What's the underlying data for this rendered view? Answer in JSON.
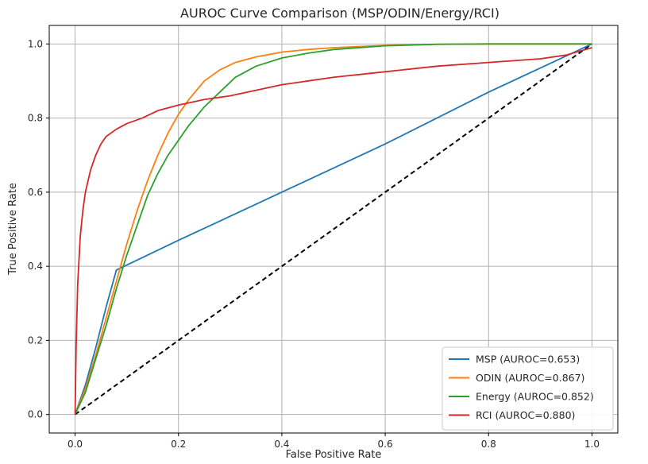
{
  "chart_data": {
    "type": "line",
    "title": "AUROC Curve Comparison (MSP/ODIN/Energy/RCI)",
    "xlabel": "False Positive Rate",
    "ylabel": "True Positive Rate",
    "xlim": [
      -0.05,
      1.05
    ],
    "ylim": [
      -0.05,
      1.05
    ],
    "xticks": [
      0.0,
      0.2,
      0.4,
      0.6,
      0.8,
      1.0
    ],
    "yticks": [
      0.0,
      0.2,
      0.4,
      0.6,
      0.8,
      1.0
    ],
    "xtick_labels": [
      "0.0",
      "0.2",
      "0.4",
      "0.6",
      "0.8",
      "1.0"
    ],
    "ytick_labels": [
      "0.0",
      "0.2",
      "0.4",
      "0.6",
      "0.8",
      "1.0"
    ],
    "grid": true,
    "legend_position": "lower-right",
    "series": [
      {
        "name": "MSP (AUROC=0.653)",
        "color": "#1f77b4",
        "x": [
          0.0,
          0.02,
          0.04,
          0.06,
          0.08,
          0.095,
          0.2,
          0.4,
          0.6,
          0.8,
          1.0
        ],
        "y": [
          0.0,
          0.08,
          0.18,
          0.29,
          0.39,
          0.4,
          0.47,
          0.6,
          0.73,
          0.87,
          1.0
        ]
      },
      {
        "name": "ODIN (AUROC=0.867)",
        "color": "#ff7f0e",
        "x": [
          0.0,
          0.02,
          0.04,
          0.06,
          0.08,
          0.1,
          0.12,
          0.14,
          0.16,
          0.18,
          0.2,
          0.22,
          0.25,
          0.28,
          0.31,
          0.35,
          0.4,
          0.45,
          0.5,
          0.6,
          0.7,
          0.8,
          0.9,
          1.0
        ],
        "y": [
          0.0,
          0.07,
          0.16,
          0.26,
          0.36,
          0.46,
          0.55,
          0.63,
          0.7,
          0.76,
          0.81,
          0.85,
          0.9,
          0.93,
          0.95,
          0.965,
          0.978,
          0.985,
          0.99,
          0.996,
          0.999,
          1.0,
          1.0,
          1.0
        ]
      },
      {
        "name": "Energy (AUROC=0.852)",
        "color": "#2ca02c",
        "x": [
          0.0,
          0.02,
          0.04,
          0.06,
          0.08,
          0.1,
          0.12,
          0.14,
          0.16,
          0.18,
          0.2,
          0.22,
          0.25,
          0.28,
          0.31,
          0.35,
          0.4,
          0.45,
          0.5,
          0.6,
          0.7,
          0.8,
          0.9,
          1.0
        ],
        "y": [
          0.0,
          0.06,
          0.15,
          0.24,
          0.34,
          0.43,
          0.51,
          0.59,
          0.65,
          0.7,
          0.74,
          0.78,
          0.83,
          0.87,
          0.91,
          0.94,
          0.962,
          0.975,
          0.985,
          0.995,
          0.999,
          1.0,
          1.0,
          1.0
        ]
      },
      {
        "name": "RCI (AUROC=0.880)",
        "color": "#d62728",
        "x": [
          0.0,
          0.002,
          0.005,
          0.01,
          0.015,
          0.02,
          0.03,
          0.04,
          0.05,
          0.06,
          0.08,
          0.1,
          0.13,
          0.16,
          0.2,
          0.25,
          0.3,
          0.35,
          0.4,
          0.45,
          0.5,
          0.6,
          0.7,
          0.8,
          0.9,
          0.95,
          1.0
        ],
        "y": [
          0.0,
          0.18,
          0.35,
          0.48,
          0.55,
          0.6,
          0.66,
          0.7,
          0.73,
          0.75,
          0.77,
          0.785,
          0.8,
          0.82,
          0.835,
          0.85,
          0.86,
          0.875,
          0.89,
          0.9,
          0.91,
          0.925,
          0.94,
          0.95,
          0.96,
          0.97,
          0.99
        ]
      },
      {
        "name": "",
        "color": "#000000",
        "dashed": true,
        "x": [
          0.0,
          1.0
        ],
        "y": [
          0.0,
          1.0
        ]
      }
    ]
  }
}
